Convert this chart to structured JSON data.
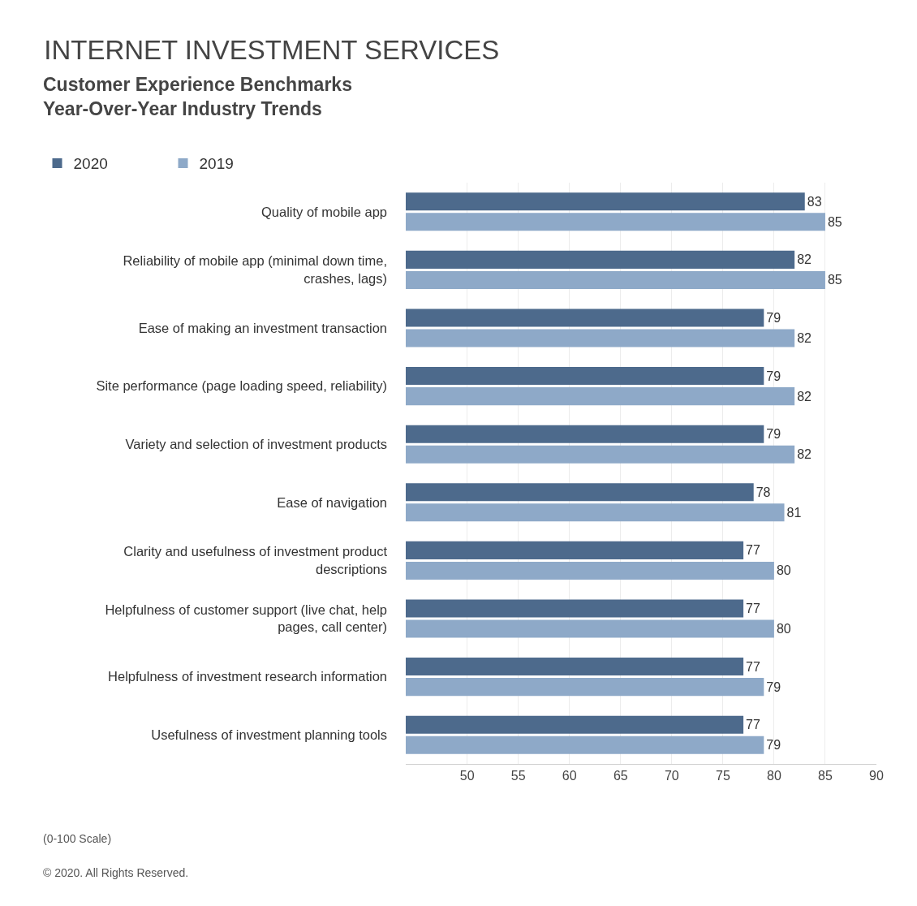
{
  "chart_data": {
    "type": "bar",
    "orientation": "horizontal",
    "title": "INTERNET INVESTMENT SERVICES",
    "subtitle": "Customer Experience Benchmarks\nYear-Over-Year Industry Trends",
    "categories": [
      "Quality of mobile app",
      "Reliability of mobile app (minimal down time, crashes, lags)",
      "Ease of making an investment transaction",
      "Site performance (page loading speed, reliability)",
      "Variety and selection of investment products",
      "Ease of navigation",
      "Clarity and usefulness of investment product descriptions",
      "Helpfulness of customer support (live chat, help pages, call center)",
      "Helpfulness of investment research information",
      "Usefulness of investment planning tools"
    ],
    "series": [
      {
        "name": "2020",
        "color": "#4d6a8c",
        "values": [
          83,
          82,
          79,
          79,
          79,
          78,
          77,
          77,
          77,
          77
        ]
      },
      {
        "name": "2019",
        "color": "#8ea9c8",
        "values": [
          85,
          85,
          82,
          82,
          82,
          81,
          80,
          80,
          79,
          79
        ]
      }
    ],
    "xlim": [
      44,
      90
    ],
    "xticks": [
      50,
      55,
      60,
      65,
      70,
      75,
      80,
      85,
      90
    ],
    "grid": "x",
    "legend": "top left",
    "data_labels": true,
    "annotations": [
      "(0-100 Scale)",
      "© 2020. All Rights Reserved."
    ]
  }
}
